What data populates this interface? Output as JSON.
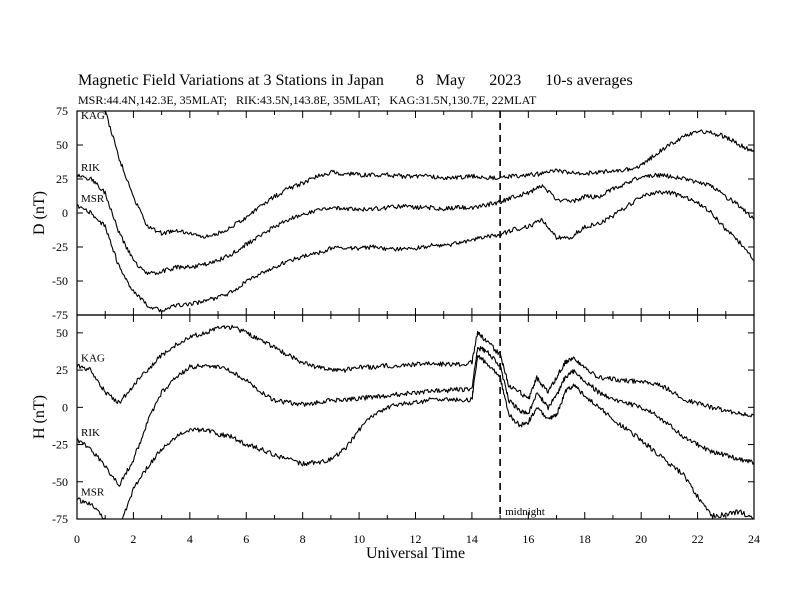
{
  "header": {
    "title": "Magnetic Field Variations at 3 Stations in Japan        8   May      2023      10-s averages",
    "subtitle": "MSR:44.4N,142.3E, 35MLAT;   RIK:43.5N,143.8E, 35MLAT;   KAG:31.5N,130.7E, 22MLAT"
  },
  "chart_data": [
    {
      "type": "line",
      "panel": "D",
      "ylabel": "D (nT)",
      "ylim": [
        -75,
        75
      ],
      "yticks": [
        -75,
        -50,
        -25,
        0,
        25,
        50,
        75
      ],
      "xlim": [
        0,
        24
      ],
      "grid": false,
      "series": [
        {
          "name": "KAG",
          "x": [
            0,
            0.5,
            1,
            1.5,
            2,
            2.5,
            3,
            3.5,
            4,
            4.5,
            5,
            5.5,
            6,
            6.5,
            7,
            7.5,
            8,
            8.5,
            9,
            9.5,
            10,
            10.5,
            11,
            11.5,
            12,
            12.5,
            13,
            13.5,
            14,
            14.5,
            15,
            15.5,
            16,
            16.5,
            17,
            17.5,
            18,
            18.5,
            19,
            19.5,
            20,
            20.5,
            21,
            21.5,
            22,
            22.5,
            23,
            23.5,
            24
          ],
          "values": [
            78,
            82,
            75,
            40,
            12,
            -10,
            -15,
            -13,
            -15,
            -18,
            -15,
            -10,
            -3,
            5,
            12,
            18,
            22,
            27,
            30,
            29,
            28,
            28,
            28,
            27,
            27,
            27,
            26,
            26,
            27,
            26,
            26,
            27,
            28,
            29,
            31,
            30,
            29,
            30,
            31,
            32,
            35,
            43,
            50,
            56,
            60,
            59,
            56,
            50,
            45
          ]
        },
        {
          "name": "RIK",
          "x": [
            0,
            0.5,
            1,
            1.5,
            2,
            2.5,
            3,
            3.5,
            4,
            4.5,
            5,
            5.5,
            6,
            6.5,
            7,
            7.5,
            8,
            8.5,
            9,
            9.5,
            10,
            10.5,
            11,
            11.5,
            12,
            12.5,
            13,
            13.5,
            14,
            14.5,
            15,
            15.5,
            16,
            16.5,
            17,
            17.5,
            18,
            18.5,
            19,
            19.5,
            20,
            20.5,
            21,
            21.5,
            22,
            22.5,
            23,
            23.5,
            24
          ],
          "values": [
            28,
            25,
            15,
            -15,
            -35,
            -45,
            -43,
            -40,
            -40,
            -38,
            -35,
            -30,
            -23,
            -17,
            -10,
            -5,
            -1,
            2,
            4,
            3,
            3,
            3,
            4,
            5,
            4,
            4,
            3,
            4,
            4,
            6,
            8,
            12,
            15,
            20,
            10,
            8,
            12,
            12,
            18,
            22,
            27,
            28,
            27,
            25,
            23,
            20,
            12,
            5,
            -5
          ]
        },
        {
          "name": "MSR",
          "x": [
            0,
            0.5,
            1,
            1.5,
            2,
            2.5,
            3,
            3.5,
            4,
            4.5,
            5,
            5.5,
            6,
            6.5,
            7,
            7.5,
            8,
            8.5,
            9,
            9.5,
            10,
            10.5,
            11,
            11.5,
            12,
            12.5,
            13,
            13.5,
            14,
            14.5,
            15,
            15.5,
            16,
            16.5,
            17,
            17.5,
            18,
            18.5,
            19,
            19.5,
            20,
            20.5,
            21,
            21.5,
            22,
            22.5,
            23,
            23.5,
            24
          ],
          "values": [
            5,
            0,
            -10,
            -40,
            -58,
            -68,
            -72,
            -68,
            -67,
            -65,
            -62,
            -58,
            -50,
            -45,
            -40,
            -35,
            -32,
            -30,
            -26,
            -25,
            -26,
            -25,
            -27,
            -26,
            -26,
            -24,
            -24,
            -22,
            -20,
            -17,
            -16,
            -12,
            -10,
            -5,
            -18,
            -18,
            -10,
            -8,
            -2,
            5,
            12,
            15,
            15,
            12,
            8,
            0,
            -12,
            -22,
            -35
          ]
        }
      ]
    },
    {
      "type": "line",
      "panel": "H",
      "ylabel": "H (nT)",
      "ylim": [
        -75,
        62
      ],
      "yticks": [
        -75,
        -50,
        -25,
        0,
        25,
        50
      ],
      "xlim": [
        0,
        24
      ],
      "xticks": [
        0,
        2,
        4,
        6,
        8,
        10,
        12,
        14,
        16,
        18,
        20,
        22,
        24
      ],
      "xlabel": "Universal Time",
      "grid": false,
      "annotations": [
        {
          "x": 15,
          "text": "midnight"
        }
      ],
      "series": [
        {
          "name": "KAG",
          "x": [
            0,
            0.5,
            1,
            1.5,
            2,
            2.5,
            3,
            3.5,
            4,
            4.5,
            5,
            5.5,
            6,
            6.5,
            7,
            7.5,
            8,
            8.5,
            9,
            9.5,
            10,
            10.5,
            11,
            11.5,
            12,
            12.5,
            13,
            13.5,
            14,
            14.2,
            14.5,
            15,
            15.3,
            15.7,
            16,
            16.3,
            16.7,
            17,
            17.3,
            17.6,
            18,
            18.5,
            19,
            19.5,
            20,
            20.5,
            21,
            21.5,
            22,
            22.5,
            23,
            23.5,
            24
          ],
          "values": [
            28,
            25,
            10,
            3,
            15,
            25,
            35,
            42,
            47,
            50,
            53,
            54,
            50,
            45,
            40,
            35,
            30,
            27,
            25,
            25,
            27,
            27,
            28,
            28,
            29,
            30,
            29,
            29,
            30,
            50,
            45,
            35,
            15,
            10,
            5,
            20,
            10,
            20,
            30,
            33,
            27,
            20,
            19,
            18,
            17,
            16,
            12,
            5,
            3,
            0,
            -2,
            -4,
            -5
          ]
        },
        {
          "name": "RIK",
          "x": [
            0,
            0.5,
            1,
            1.5,
            2,
            2.5,
            3,
            3.5,
            4,
            4.5,
            5,
            5.5,
            6,
            6.5,
            7,
            7.5,
            8,
            8.5,
            9,
            9.5,
            10,
            10.5,
            11,
            11.5,
            12,
            12.5,
            13,
            13.5,
            14,
            14.2,
            14.5,
            15,
            15.3,
            15.7,
            16,
            16.3,
            16.7,
            17,
            17.3,
            17.6,
            18,
            18.5,
            19,
            19.5,
            20,
            20.5,
            21,
            21.5,
            22,
            22.5,
            23,
            23.5,
            24
          ],
          "values": [
            -22,
            -28,
            -40,
            -52,
            -35,
            -10,
            10,
            20,
            27,
            28,
            27,
            24,
            18,
            10,
            5,
            3,
            2,
            3,
            5,
            5,
            6,
            7,
            8,
            9,
            10,
            11,
            11,
            12,
            12,
            40,
            38,
            28,
            5,
            -2,
            -5,
            10,
            0,
            8,
            20,
            24,
            18,
            10,
            5,
            3,
            0,
            -5,
            -12,
            -20,
            -25,
            -30,
            -32,
            -35,
            -37
          ]
        },
        {
          "name": "MSR",
          "x": [
            0,
            0.5,
            1,
            1.5,
            2,
            2.5,
            3,
            3.5,
            4,
            4.5,
            5,
            5.5,
            6,
            6.5,
            7,
            7.5,
            8,
            8.5,
            9,
            9.5,
            10,
            10.5,
            11,
            11.5,
            12,
            12.5,
            13,
            13.5,
            14,
            14.2,
            14.5,
            15,
            15.3,
            15.7,
            16,
            16.3,
            16.7,
            17,
            17.3,
            17.6,
            18,
            18.5,
            19,
            19.5,
            20,
            20.5,
            21,
            21.5,
            22,
            22.5,
            23,
            23.5,
            24
          ],
          "values": [
            -62,
            -65,
            -75,
            -80,
            -55,
            -40,
            -28,
            -20,
            -15,
            -15,
            -18,
            -20,
            -25,
            -28,
            -32,
            -35,
            -38,
            -37,
            -35,
            -28,
            -15,
            -5,
            0,
            2,
            3,
            5,
            5,
            5,
            5,
            35,
            30,
            20,
            -5,
            -12,
            -10,
            0,
            -8,
            -5,
            10,
            15,
            8,
            0,
            -8,
            -15,
            -22,
            -30,
            -38,
            -45,
            -60,
            -73,
            -72,
            -70,
            -75
          ]
        }
      ]
    }
  ]
}
